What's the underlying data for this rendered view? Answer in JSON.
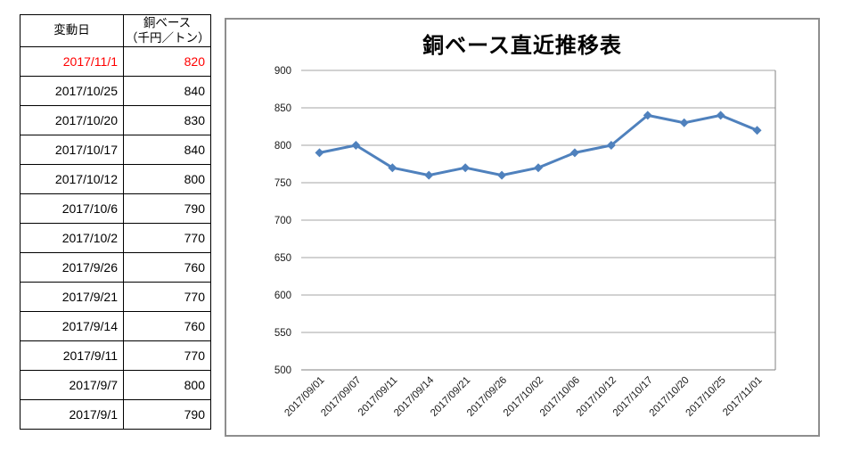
{
  "table": {
    "headers": {
      "date": "変動日",
      "value_line1": "銅ベース",
      "value_line2": "（千円／トン）"
    },
    "rows": [
      {
        "date": "2017/11/1",
        "value": "820",
        "highlight": true
      },
      {
        "date": "2017/10/25",
        "value": "840",
        "highlight": false
      },
      {
        "date": "2017/10/20",
        "value": "830",
        "highlight": false
      },
      {
        "date": "2017/10/17",
        "value": "840",
        "highlight": false
      },
      {
        "date": "2017/10/12",
        "value": "800",
        "highlight": false
      },
      {
        "date": "2017/10/6",
        "value": "790",
        "highlight": false
      },
      {
        "date": "2017/10/2",
        "value": "770",
        "highlight": false
      },
      {
        "date": "2017/9/26",
        "value": "760",
        "highlight": false
      },
      {
        "date": "2017/9/21",
        "value": "770",
        "highlight": false
      },
      {
        "date": "2017/9/14",
        "value": "760",
        "highlight": false
      },
      {
        "date": "2017/9/11",
        "value": "770",
        "highlight": false
      },
      {
        "date": "2017/9/7",
        "value": "800",
        "highlight": false
      },
      {
        "date": "2017/9/1",
        "value": "790",
        "highlight": false
      }
    ]
  },
  "chart_data": {
    "type": "line",
    "title": "銅ベース直近推移表",
    "categories": [
      "2017/09/01",
      "2017/09/07",
      "2017/09/11",
      "2017/09/14",
      "2017/09/21",
      "2017/09/26",
      "2017/10/02",
      "2017/10/06",
      "2017/10/12",
      "2017/10/17",
      "2017/10/20",
      "2017/10/25",
      "2017/11/01"
    ],
    "values": [
      790,
      800,
      770,
      760,
      770,
      760,
      770,
      790,
      800,
      840,
      830,
      840,
      820
    ],
    "xlabel": "",
    "ylabel": "",
    "ylim": [
      500,
      900
    ],
    "yticks": [
      900,
      850,
      800,
      750,
      700,
      650,
      600,
      550,
      500
    ],
    "grid": true,
    "legend": "none",
    "marker": "diamond",
    "series_color": "#4F81BD"
  },
  "colors": {
    "highlight_text": "#FF0000",
    "series": "#4F81BD",
    "gridline": "#A6A6A6",
    "axis": "#808080",
    "chart_border": "#8E8E8E",
    "table_border": "#000000",
    "label": "#1A1A1A"
  }
}
